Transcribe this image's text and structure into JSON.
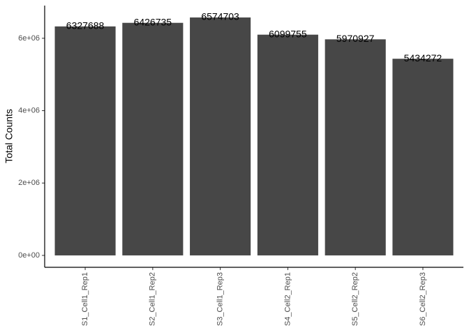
{
  "chart_data": {
    "type": "bar",
    "y_label": "Total Counts",
    "categories": [
      "S1_Cell1_Rep1",
      "S2_Cell1_Rep2",
      "S3_Cell1_Rep3",
      "S4_Cell2_Rep1",
      "S5_Cell2_Rep2",
      "S6_Cell2_Rep3"
    ],
    "values": [
      6327688,
      6426735,
      6574703,
      6099755,
      5970927,
      5434272
    ],
    "color": "#474747",
    "ylim": [
      -328735,
      6903438
    ],
    "yticks": [
      {
        "value": 0,
        "label": "0e+00"
      },
      {
        "value": 2000000,
        "label": "2e+06"
      },
      {
        "value": 4000000,
        "label": "4e+06"
      },
      {
        "value": 6000000,
        "label": "6e+06"
      }
    ],
    "grid": false
  }
}
